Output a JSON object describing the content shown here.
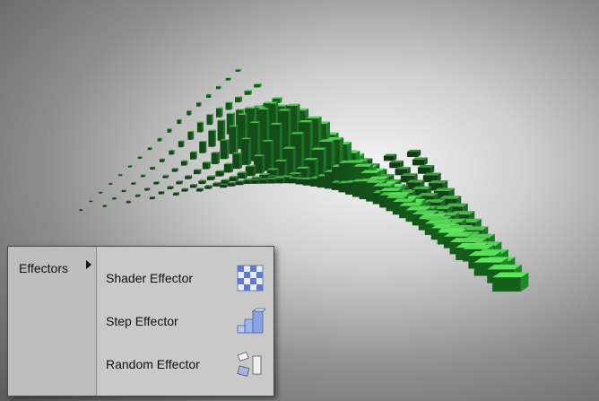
{
  "menu": {
    "category_label": "Effectors",
    "items": [
      {
        "label": "Shader Effector",
        "icon": "shader-effector-icon"
      },
      {
        "label": "Step Effector",
        "icon": "step-effector-icon"
      },
      {
        "label": "Random Effector",
        "icon": "random-effector-icon"
      }
    ]
  },
  "colors": {
    "cube_green": "#4fbf4f",
    "highlight_blue": "#3a3adf",
    "menu_bg": "#c7c7c7"
  }
}
